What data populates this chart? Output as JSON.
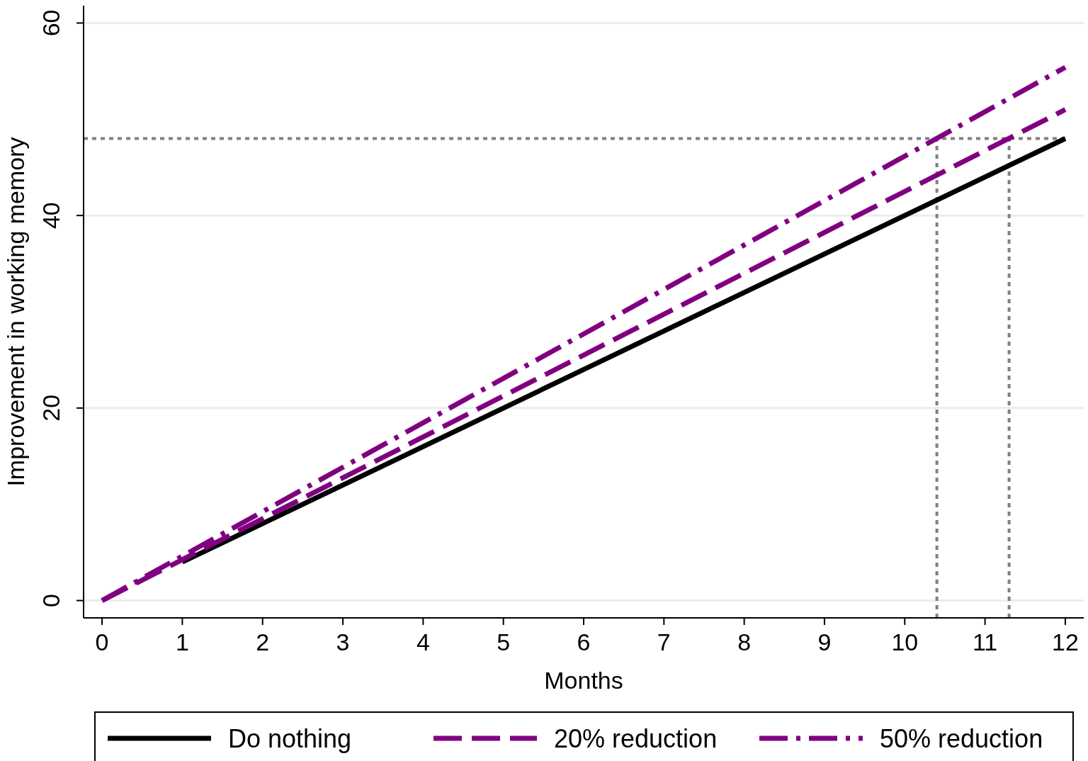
{
  "chart_data": {
    "type": "line",
    "xlabel": "Months",
    "ylabel": "Improvement in working memory",
    "xlim": [
      -0.23,
      12.23
    ],
    "ylim": [
      -1.8,
      61.8
    ],
    "xticks": [
      0,
      1,
      2,
      3,
      4,
      5,
      6,
      7,
      8,
      9,
      10,
      11,
      12
    ],
    "yticks": [
      0,
      20,
      40,
      60
    ],
    "grid": "y",
    "legend": "bottom",
    "series": [
      {
        "name": "Do nothing",
        "color": "#000000",
        "x": [
          1,
          12
        ],
        "values": [
          4,
          48
        ],
        "line_style": "solid"
      },
      {
        "name": "20% reduction",
        "color": "#800080",
        "x": [
          0,
          12
        ],
        "values": [
          0,
          51
        ],
        "line_style": "dashed"
      },
      {
        "name": "50% reduction",
        "color": "#800080",
        "x": [
          0,
          12
        ],
        "values": [
          0,
          55.4
        ],
        "line_style": "dashdot"
      }
    ],
    "ref_lines": [
      {
        "axis": "y",
        "value": 48,
        "color": "#808080",
        "line_style": "dotted"
      },
      {
        "axis": "x",
        "value": 10.4,
        "color": "#808080",
        "line_style": "dotted"
      },
      {
        "axis": "x",
        "value": 11.3,
        "color": "#808080",
        "line_style": "dotted"
      }
    ]
  }
}
